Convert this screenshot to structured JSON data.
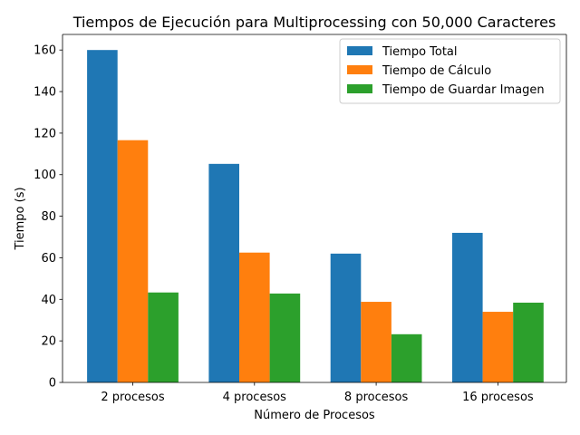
{
  "chart_data": {
    "type": "bar",
    "title": "Tiempos de Ejecución para Multiprocessing con 50,000 Caracteres",
    "xlabel": "Número de Procesos",
    "ylabel": "Tiempo (s)",
    "categories": [
      "2 procesos",
      "4 procesos",
      "8 procesos",
      "16 procesos"
    ],
    "series": [
      {
        "name": "Tiempo Total",
        "color": "#1f77b4",
        "values": [
          160.0,
          105.2,
          62.0,
          72.0
        ]
      },
      {
        "name": "Tiempo de Cálculo",
        "color": "#ff7f0e",
        "values": [
          116.6,
          62.5,
          38.8,
          34.0
        ]
      },
      {
        "name": "Tiempo de Guardar Imagen",
        "color": "#2ca02c",
        "values": [
          43.3,
          42.8,
          23.2,
          38.4
        ]
      }
    ],
    "ylim": [
      0,
      167.5
    ],
    "yticks": [
      0,
      20,
      40,
      60,
      80,
      100,
      120,
      140,
      160
    ],
    "grid": false,
    "legend_position": "top-right"
  }
}
